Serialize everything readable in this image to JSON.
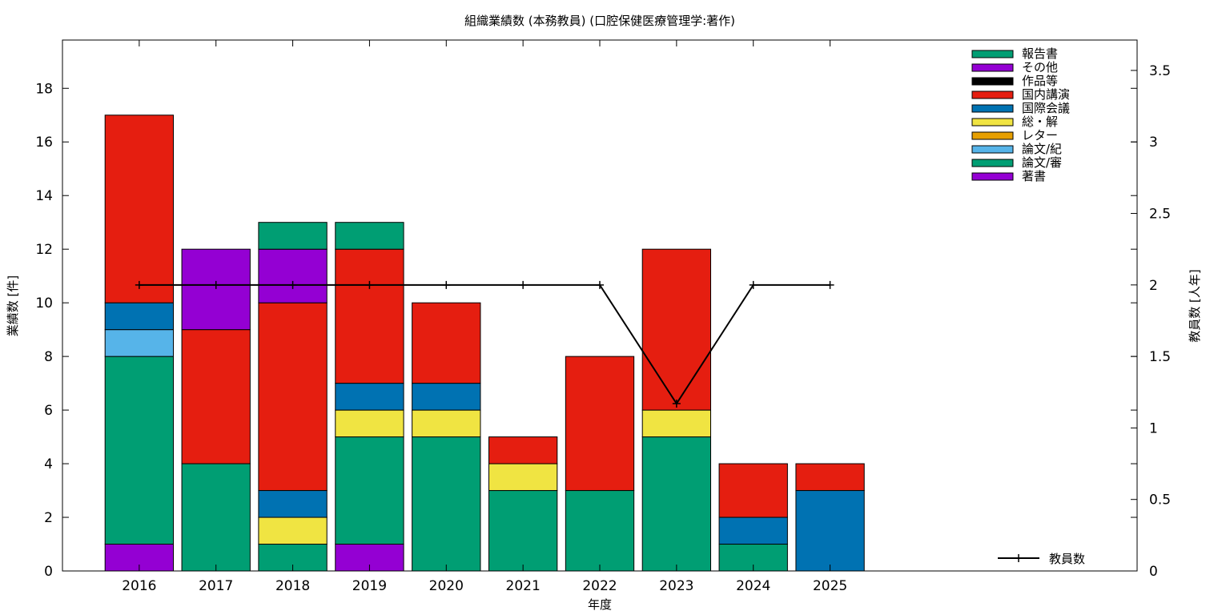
{
  "chart_data": {
    "type": "bar",
    "stacked": true,
    "title": "組織業績数 (本務教員) (口腔保健医療管理学:著作)",
    "xlabel": "年度",
    "ylabel": "業績数 [件]",
    "y2label": "教員数 [人年]",
    "categories": [
      "2016",
      "2017",
      "2018",
      "2019",
      "2020",
      "2021",
      "2022",
      "2023",
      "2024",
      "2025"
    ],
    "xlim_extra_slots": 4,
    "ylim": [
      0,
      19.8
    ],
    "yticks": [
      0,
      2,
      4,
      6,
      8,
      10,
      12,
      14,
      16,
      18
    ],
    "y2lim": [
      0,
      3.7125
    ],
    "y2ticks": [
      0,
      0.5,
      1,
      1.5,
      2,
      2.5,
      3,
      3.5
    ],
    "legend_position": "top-right",
    "series": [
      {
        "name": "著書",
        "color": "#9400d3",
        "values": [
          1,
          0,
          0,
          1,
          0,
          0,
          0,
          0,
          0,
          0
        ]
      },
      {
        "name": "論文/審",
        "color": "#009e73",
        "values": [
          7,
          4,
          1,
          4,
          5,
          3,
          3,
          5,
          1,
          0
        ]
      },
      {
        "name": "論文/紀",
        "color": "#56b4e9",
        "values": [
          1,
          0,
          0,
          0,
          0,
          0,
          0,
          0,
          0,
          0
        ]
      },
      {
        "name": "レター",
        "color": "#e69f00",
        "values": [
          0,
          0,
          0,
          0,
          0,
          0,
          0,
          0,
          0,
          0
        ]
      },
      {
        "name": "総・解",
        "color": "#f0e442",
        "values": [
          0,
          0,
          1,
          1,
          1,
          1,
          0,
          1,
          0,
          0
        ]
      },
      {
        "name": "国際会議",
        "color": "#0072b2",
        "values": [
          1,
          0,
          1,
          1,
          1,
          0,
          0,
          0,
          1,
          3
        ]
      },
      {
        "name": "国内講演",
        "color": "#e51e10",
        "values": [
          7,
          5,
          7,
          5,
          3,
          1,
          5,
          6,
          2,
          1
        ]
      },
      {
        "name": "作品等",
        "color": "#000000",
        "values": [
          0,
          0,
          0,
          0,
          0,
          0,
          0,
          0,
          0,
          0
        ]
      },
      {
        "name": "その他",
        "color": "#9400d3",
        "values": [
          0,
          3,
          2,
          0,
          0,
          0,
          0,
          0,
          0,
          0
        ]
      },
      {
        "name": "報告書",
        "color": "#009e73",
        "values": [
          0,
          0,
          1,
          1,
          0,
          0,
          0,
          0,
          0,
          0
        ]
      }
    ],
    "line": {
      "name": "教員数",
      "color": "#000000",
      "axis": "y2",
      "values": [
        2,
        2,
        2,
        2,
        2,
        2,
        2,
        1.17,
        2,
        2
      ]
    }
  }
}
